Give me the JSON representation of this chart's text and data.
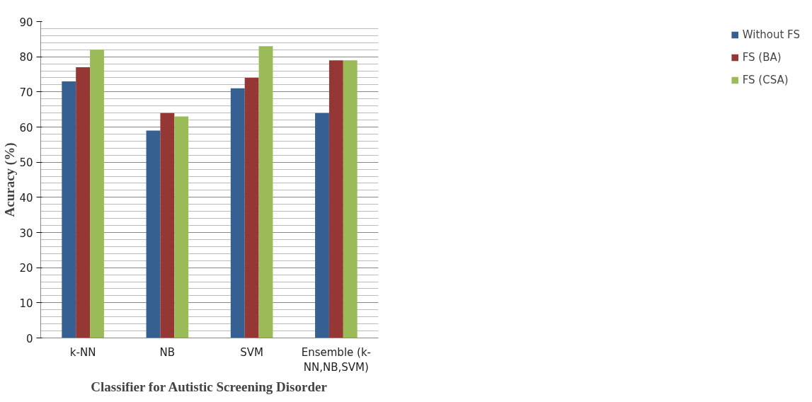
{
  "chart_data": {
    "type": "bar",
    "xlabel": "Classifier for Autistic Screening Disorder",
    "ylabel": "Acuracy (%)",
    "categories": [
      "k-NN",
      "NB",
      "SVM",
      "Ensemble (k-NN,NB,SVM)"
    ],
    "series": [
      {
        "name": "Without FS",
        "color": "#376092",
        "values": [
          73,
          59,
          71,
          64
        ]
      },
      {
        "name": "FS (BA)",
        "color": "#953735",
        "values": [
          77,
          64,
          74,
          79
        ]
      },
      {
        "name": "FS (CSA)",
        "color": "#9bbb59",
        "values": [
          82,
          63,
          83,
          79
        ]
      }
    ],
    "ylim": [
      0,
      90
    ],
    "yticks": [
      0,
      10,
      20,
      30,
      40,
      50,
      60,
      70,
      80,
      90
    ],
    "grid": "y",
    "legend": "right"
  }
}
